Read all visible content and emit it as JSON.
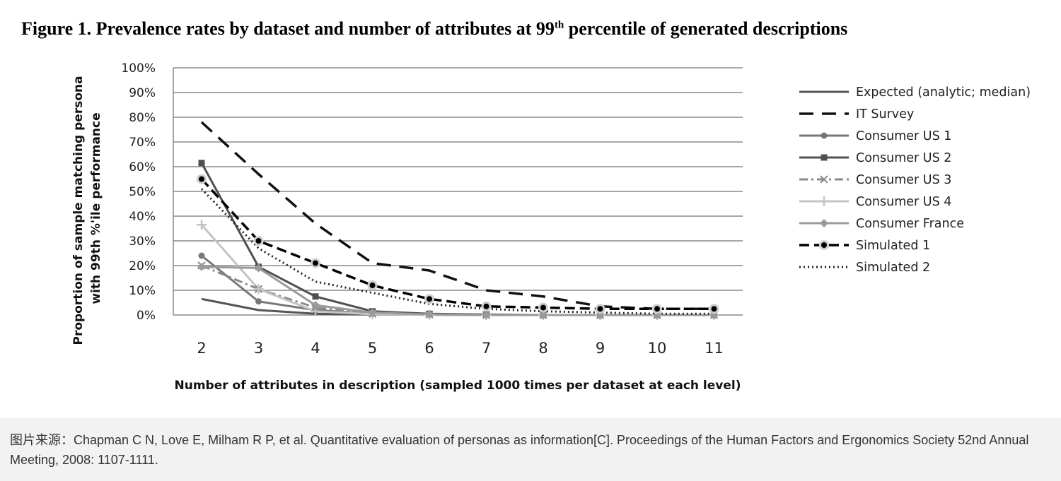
{
  "figure": {
    "title_main": "Figure 1. Prevalence rates by dataset and number of attributes at 99",
    "title_sup": "th",
    "title_rest": " percentile of generated descriptions"
  },
  "caption": "图片来源：Chapman C N, Love E, Milham R P, et al. Quantitative evaluation of personas as information[C]. Proceedings of the Human Factors and Ergonomics Society 52nd Annual Meeting, 2008: 1107-1111.",
  "chart_data": {
    "type": "line",
    "xlabel": "Number of attributes in  description (sampled 1000 times per dataset at each level)",
    "ylabel_lines": [
      "Proportion of sample matching persona",
      "with 99th %'ile performance"
    ],
    "x": [
      2,
      3,
      4,
      5,
      6,
      7,
      8,
      9,
      10,
      11
    ],
    "ylim": [
      0,
      100
    ],
    "yticks": [
      0,
      10,
      20,
      30,
      40,
      50,
      60,
      70,
      80,
      90,
      100
    ],
    "ytick_labels": [
      "0%",
      "10%",
      "20%",
      "30%",
      "40%",
      "50%",
      "60%",
      "70%",
      "80%",
      "90%",
      "100%"
    ],
    "grid": true,
    "legend_position": "right",
    "series": [
      {
        "name": "Expected (analytic; median)",
        "color": "#555555",
        "dash": "",
        "marker": "none",
        "width": 3,
        "values": [
          6.5,
          2,
          0.5,
          0.2,
          0.1,
          0,
          0,
          0,
          0,
          0
        ]
      },
      {
        "name": "IT Survey",
        "color": "#111111",
        "dash": "20,12",
        "marker": "none",
        "width": 3.5,
        "values": [
          78,
          57,
          37,
          21,
          18,
          10,
          7.5,
          3.5,
          2.5,
          2.5
        ]
      },
      {
        "name": "Consumer US 1",
        "color": "#777777",
        "dash": "",
        "marker": "circle",
        "width": 3,
        "values": [
          24,
          5.5,
          2,
          0.5,
          0.2,
          0,
          0,
          0,
          0,
          0
        ]
      },
      {
        "name": "Consumer US 2",
        "color": "#505050",
        "dash": "",
        "marker": "square",
        "width": 3,
        "values": [
          61.5,
          19.5,
          7.5,
          1.5,
          0.5,
          0.2,
          0,
          0,
          0,
          0
        ]
      },
      {
        "name": "Consumer US 3",
        "color": "#8a8a8a",
        "dash": "12,5,3,5",
        "marker": "x",
        "width": 3,
        "values": [
          20,
          10.5,
          3,
          0.5,
          0.2,
          0,
          0,
          0,
          0,
          0
        ]
      },
      {
        "name": "Consumer US 4",
        "color": "#c4c4c4",
        "dash": "",
        "marker": "plus",
        "width": 3,
        "values": [
          36.5,
          10.5,
          1.5,
          0.3,
          0.1,
          0,
          0,
          0,
          0,
          0
        ]
      },
      {
        "name": "Consumer France",
        "color": "#9a9a9a",
        "dash": "",
        "marker": "diamond",
        "width": 3,
        "values": [
          19.5,
          19,
          4,
          1,
          0.2,
          0,
          0,
          0,
          0,
          0
        ]
      },
      {
        "name": "Simulated 1",
        "color": "#000000",
        "dash": "14,7",
        "marker": "dot",
        "width": 3.5,
        "values": [
          55,
          30,
          21,
          12,
          6.5,
          3.5,
          3,
          2.5,
          2.5,
          2.5
        ]
      },
      {
        "name": "Simulated 2",
        "color": "#222222",
        "dash": "2,4",
        "marker": "none",
        "width": 3,
        "values": [
          51,
          27,
          13.5,
          9,
          4.5,
          2.5,
          1.5,
          1,
          0.5,
          0.5
        ]
      }
    ]
  }
}
